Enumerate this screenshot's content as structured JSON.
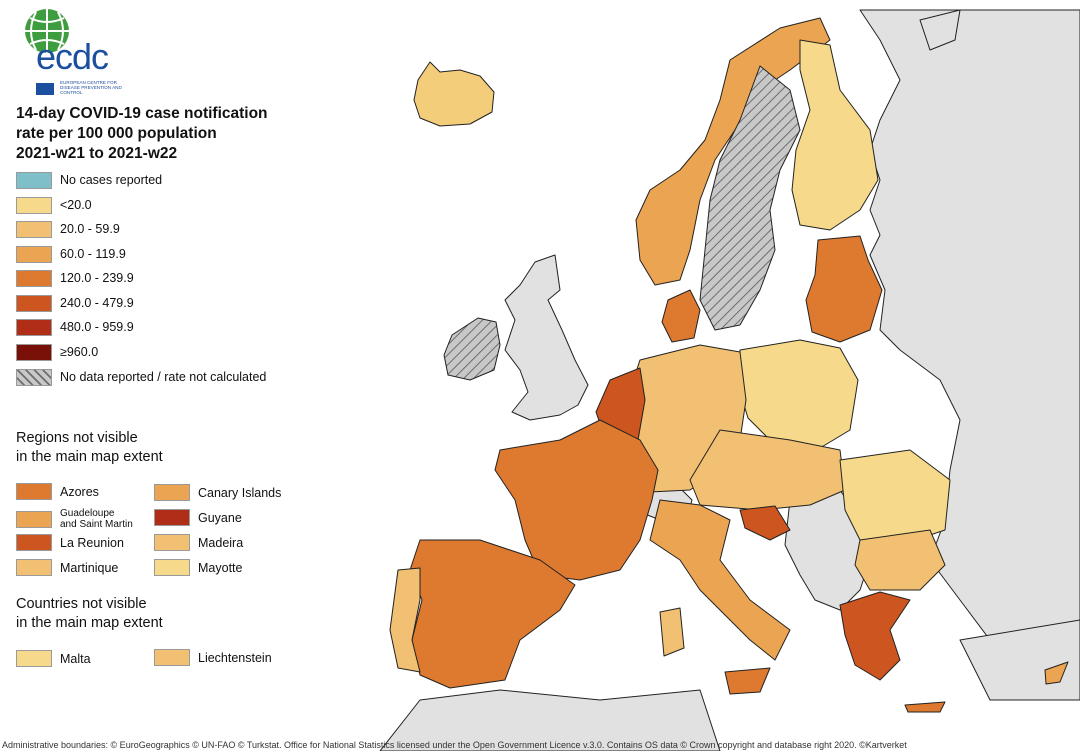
{
  "logo": {
    "text": "ecdc",
    "subtitle": "EUROPEAN CENTRE FOR DISEASE PREVENTION AND CONTROL"
  },
  "title": {
    "line1": "14-day COVID-19 case notification",
    "line2": "rate per 100 000 population",
    "line3": "2021-w21 to 2021-w22"
  },
  "legend": [
    {
      "label": "No cases reported",
      "color": "#7fbfca"
    },
    {
      "label": "<20.0",
      "color": "#f6d98a"
    },
    {
      "label": "20.0 - 59.9",
      "color": "#f1c072"
    },
    {
      "label": "60.0 - 119.9",
      "color": "#eba452"
    },
    {
      "label": "120.0 - 239.9",
      "color": "#dd7a30"
    },
    {
      "label": "240.0 - 479.9",
      "color": "#cc5520"
    },
    {
      "label": "480.0 - 959.9",
      "color": "#b02e17"
    },
    {
      "label": "≥960.0",
      "color": "#7a1109"
    },
    {
      "label": "No data reported / rate not calculated",
      "color": "hatch"
    }
  ],
  "regions_title": {
    "line1": "Regions not visible",
    "line2": "in the main map extent"
  },
  "regions": [
    {
      "label": "Azores",
      "color": "#dd7a30"
    },
    {
      "label": "Canary Islands",
      "color": "#eba452"
    },
    {
      "label": "Guadeloupe and Saint Martin",
      "line1": "Guadeloupe",
      "line2": "and Saint Martin",
      "color": "#eba452"
    },
    {
      "label": "Guyane",
      "color": "#b02e17"
    },
    {
      "label": "La Reunion",
      "color": "#cc5520"
    },
    {
      "label": "Madeira",
      "color": "#f1c072"
    },
    {
      "label": "Martinique",
      "color": "#f1c072"
    },
    {
      "label": "Mayotte",
      "color": "#f6d98a"
    }
  ],
  "countries_title": {
    "line1": "Countries not visible",
    "line2": "in the main map extent"
  },
  "countries": [
    {
      "label": "Malta",
      "color": "#f6d98a"
    },
    {
      "label": "Liechtenstein",
      "color": "#f1c072"
    }
  ],
  "footer": "Administrative boundaries: © EuroGeographics © UN-FAO © Turkstat. Office for National Statistics licensed under the Open Government Licence v.3.0. Contains OS data © Crown copyright and database right 2020. ©Kartverket"
}
